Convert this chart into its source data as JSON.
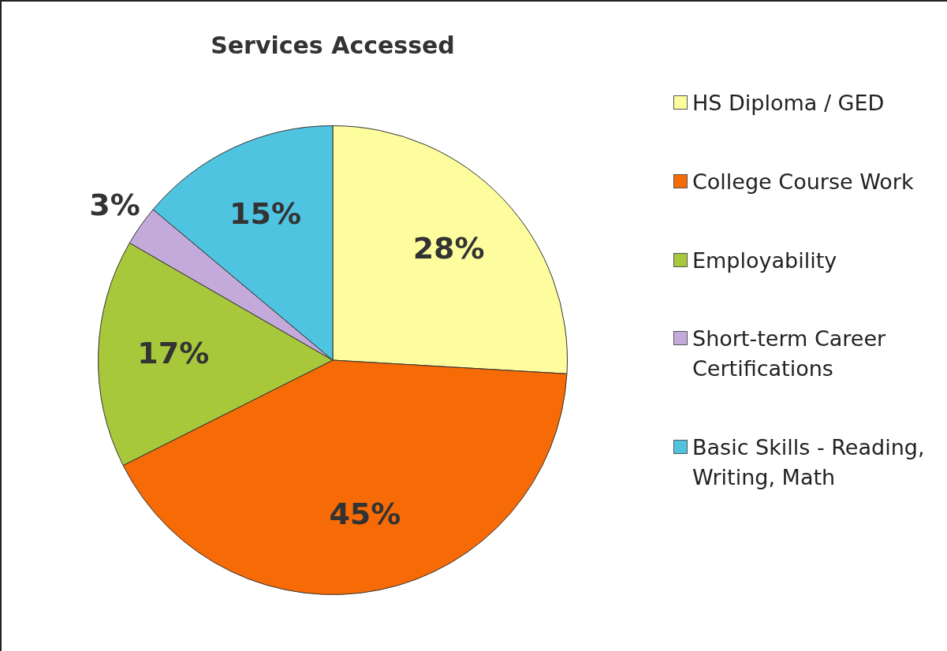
{
  "chart_data": {
    "type": "pie",
    "title": "Services Accessed",
    "categories": [
      "HS  Diploma / GED",
      "College Course Work",
      "Employability",
      "Short-term Career Certifications",
      "Basic Skills - Reading, Writing, Math"
    ],
    "values": [
      28,
      45,
      17,
      3,
      15
    ],
    "colors": [
      "#fdfd9e",
      "#f76b06",
      "#a8c83c",
      "#c4aada",
      "#4fc4e0"
    ],
    "value_labels": [
      "28%",
      "45%",
      "17%",
      "3%",
      "15%"
    ],
    "legend": "right"
  }
}
